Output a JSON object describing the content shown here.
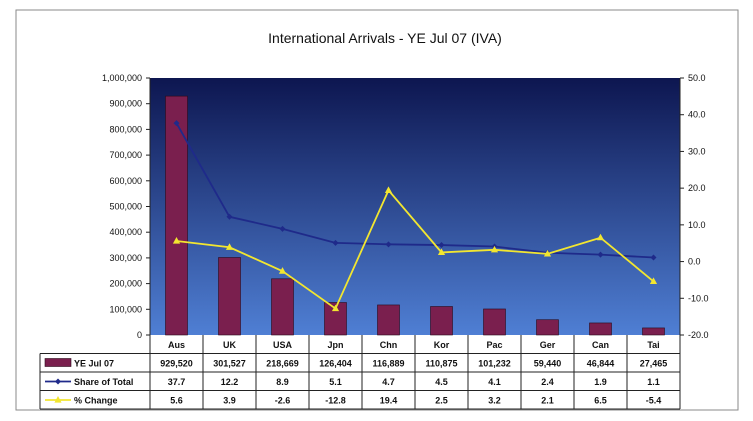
{
  "chart_data": {
    "type": "bar",
    "title": "International Arrivals - YE Jul 07 (IVA)",
    "categories": [
      "Aus",
      "UK",
      "USA",
      "Jpn",
      "Chn",
      "Kor",
      "Pac",
      "Ger",
      "Can",
      "Tai"
    ],
    "series": [
      {
        "name": "YE Jul 07",
        "type": "bar",
        "axis": "left",
        "color": "#7a1f4e",
        "values": [
          929520,
          301527,
          218669,
          126404,
          116889,
          110875,
          101232,
          59440,
          46844,
          27465
        ],
        "labels": [
          "929,520",
          "301,527",
          "218,669",
          "126,404",
          "116,889",
          "110,875",
          "101,232",
          "59,440",
          "46,844",
          "27,465"
        ]
      },
      {
        "name": "Share of Total",
        "type": "line",
        "axis": "right",
        "color": "#1f2a8a",
        "values": [
          37.7,
          12.2,
          8.9,
          5.1,
          4.7,
          4.5,
          4.1,
          2.4,
          1.9,
          1.1
        ],
        "labels": [
          "37.7",
          "12.2",
          "8.9",
          "5.1",
          "4.7",
          "4.5",
          "4.1",
          "2.4",
          "1.9",
          "1.1"
        ]
      },
      {
        "name": "% Change",
        "type": "line",
        "axis": "right",
        "color": "#f2e630",
        "values": [
          5.6,
          3.9,
          -2.6,
          -12.8,
          19.4,
          2.5,
          3.2,
          2.1,
          6.5,
          -5.4
        ],
        "labels": [
          "5.6",
          "3.9",
          "-2.6",
          "-12.8",
          "19.4",
          "2.5",
          "3.2",
          "2.1",
          "6.5",
          "-5.4"
        ]
      }
    ],
    "y_left": {
      "ylim": [
        0,
        1000000
      ],
      "ticks": [
        "0",
        "100,000",
        "200,000",
        "300,000",
        "400,000",
        "500,000",
        "600,000",
        "700,000",
        "800,000",
        "900,000",
        "1,000,000"
      ]
    },
    "y_right": {
      "ylim": [
        -20,
        50
      ],
      "ticks": [
        "-20.0",
        "-10.0",
        "0.0",
        "10.0",
        "20.0",
        "30.0",
        "40.0",
        "50.0"
      ]
    },
    "grid": false,
    "legend": "data-table",
    "plot_background": [
      "#0d1650",
      "#4f7fd4"
    ]
  }
}
